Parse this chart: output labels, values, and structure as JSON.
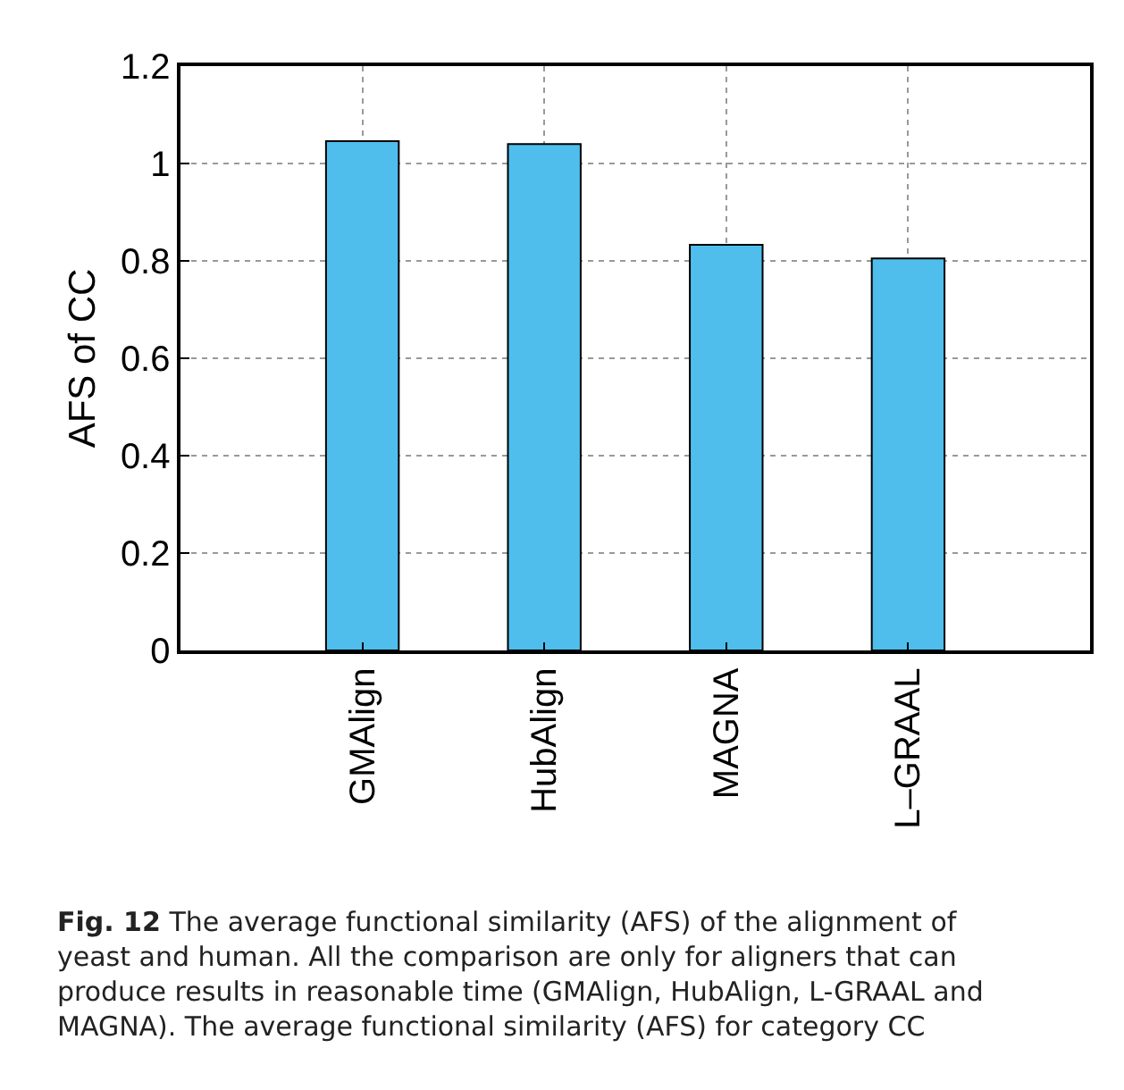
{
  "chart_data": {
    "type": "bar",
    "ylabel": "AFS of CC",
    "categories": [
      "GMAlign",
      "HubAlign",
      "MAGNA",
      "L–GRAAL"
    ],
    "values": [
      1.046,
      1.04,
      0.833,
      0.805
    ],
    "color": "#4fbeed",
    "ylim": [
      0,
      1.2
    ],
    "yticks": [
      0,
      0.2,
      0.4,
      0.6,
      0.8,
      1,
      1.2
    ],
    "grid": true,
    "annotations": [
      "Fig. 12 The average functional similarity (AFS) of the alignment of yeast and human. All the comparison are only for aligners that can produce results in reasonable time (GMAlign, HubAlign, L-GRAAL and MAGNA). The average functional similarity (AFS) for category CC"
    ]
  }
}
